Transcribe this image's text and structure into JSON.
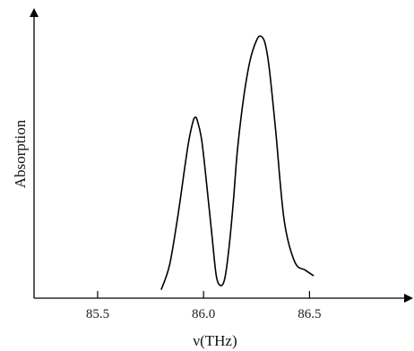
{
  "chart_data": {
    "type": "line",
    "title": "",
    "xlabel": "ν(THz)",
    "ylabel": "Absorption",
    "xlim": [
      85.2,
      86.9
    ],
    "ylim": [
      0,
      1
    ],
    "xticks": [
      {
        "value": 85.5,
        "label": "85.5"
      },
      {
        "value": 86.0,
        "label": "86.0"
      },
      {
        "value": 86.5,
        "label": "86.5"
      }
    ],
    "yticks": [],
    "grid": false,
    "legend": "none",
    "series": [
      {
        "color": "#000000",
        "x": [
          85.8,
          85.84,
          85.88,
          85.91,
          85.93,
          85.95,
          85.96,
          85.97,
          85.99,
          86.01,
          86.04,
          86.06,
          86.08,
          86.1,
          86.12,
          86.14,
          86.16,
          86.19,
          86.22,
          86.25,
          86.27,
          86.29,
          86.31,
          86.34,
          86.38,
          86.43,
          86.48,
          86.52
        ],
        "y": [
          0.03,
          0.12,
          0.3,
          0.46,
          0.56,
          0.63,
          0.645,
          0.635,
          0.57,
          0.44,
          0.22,
          0.08,
          0.045,
          0.07,
          0.18,
          0.34,
          0.53,
          0.72,
          0.85,
          0.92,
          0.935,
          0.91,
          0.82,
          0.6,
          0.28,
          0.13,
          0.1,
          0.08
        ]
      }
    ]
  }
}
